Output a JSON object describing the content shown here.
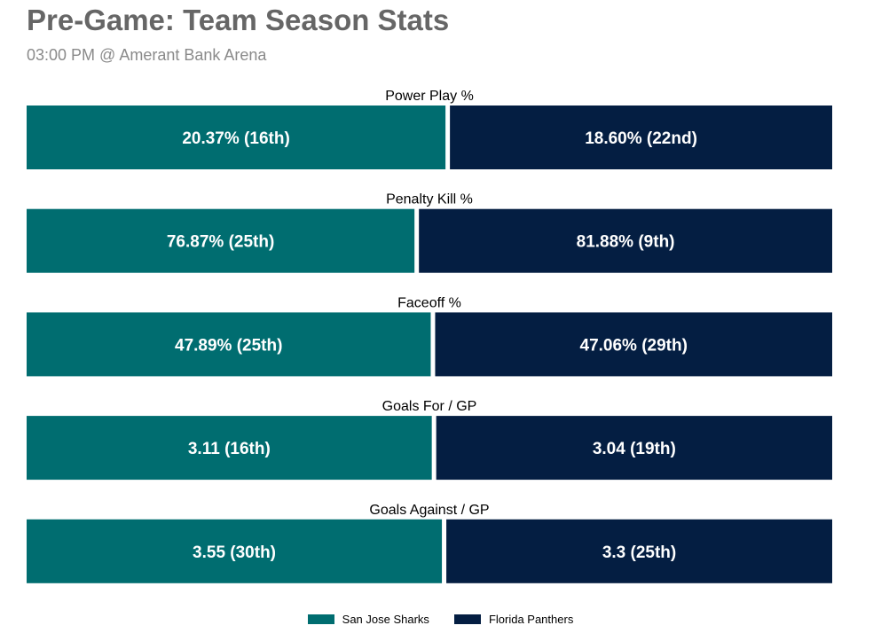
{
  "header": {
    "title": "Pre-Game: Team Season Stats",
    "subtitle": "03:00 PM @ Amerant Bank Arena"
  },
  "colors": {
    "team1": "#006D70",
    "team2": "#041E42"
  },
  "chart_data": {
    "type": "bar",
    "orientation": "horizontal",
    "stacked": "percent",
    "grid": false,
    "legend_position": "bottom-center",
    "categories": [
      "Power Play %",
      "Penalty Kill %",
      "Faceoff %",
      "Goals For / GP",
      "Goals Against / GP"
    ],
    "series": [
      {
        "name": "San Jose Sharks",
        "values": [
          20.37,
          76.87,
          47.89,
          3.11,
          3.55
        ],
        "labels": [
          "20.37% (16th)",
          "76.87% (25th)",
          "47.89% (25th)",
          "3.11 (16th)",
          "3.55 (30th)"
        ]
      },
      {
        "name": "Florida Panthers",
        "values": [
          18.6,
          81.88,
          47.06,
          3.04,
          3.3
        ],
        "labels": [
          "18.60% (22nd)",
          "81.88% (9th)",
          "47.06% (29th)",
          "3.04 (19th)",
          "3.3 (25th)"
        ]
      }
    ]
  }
}
